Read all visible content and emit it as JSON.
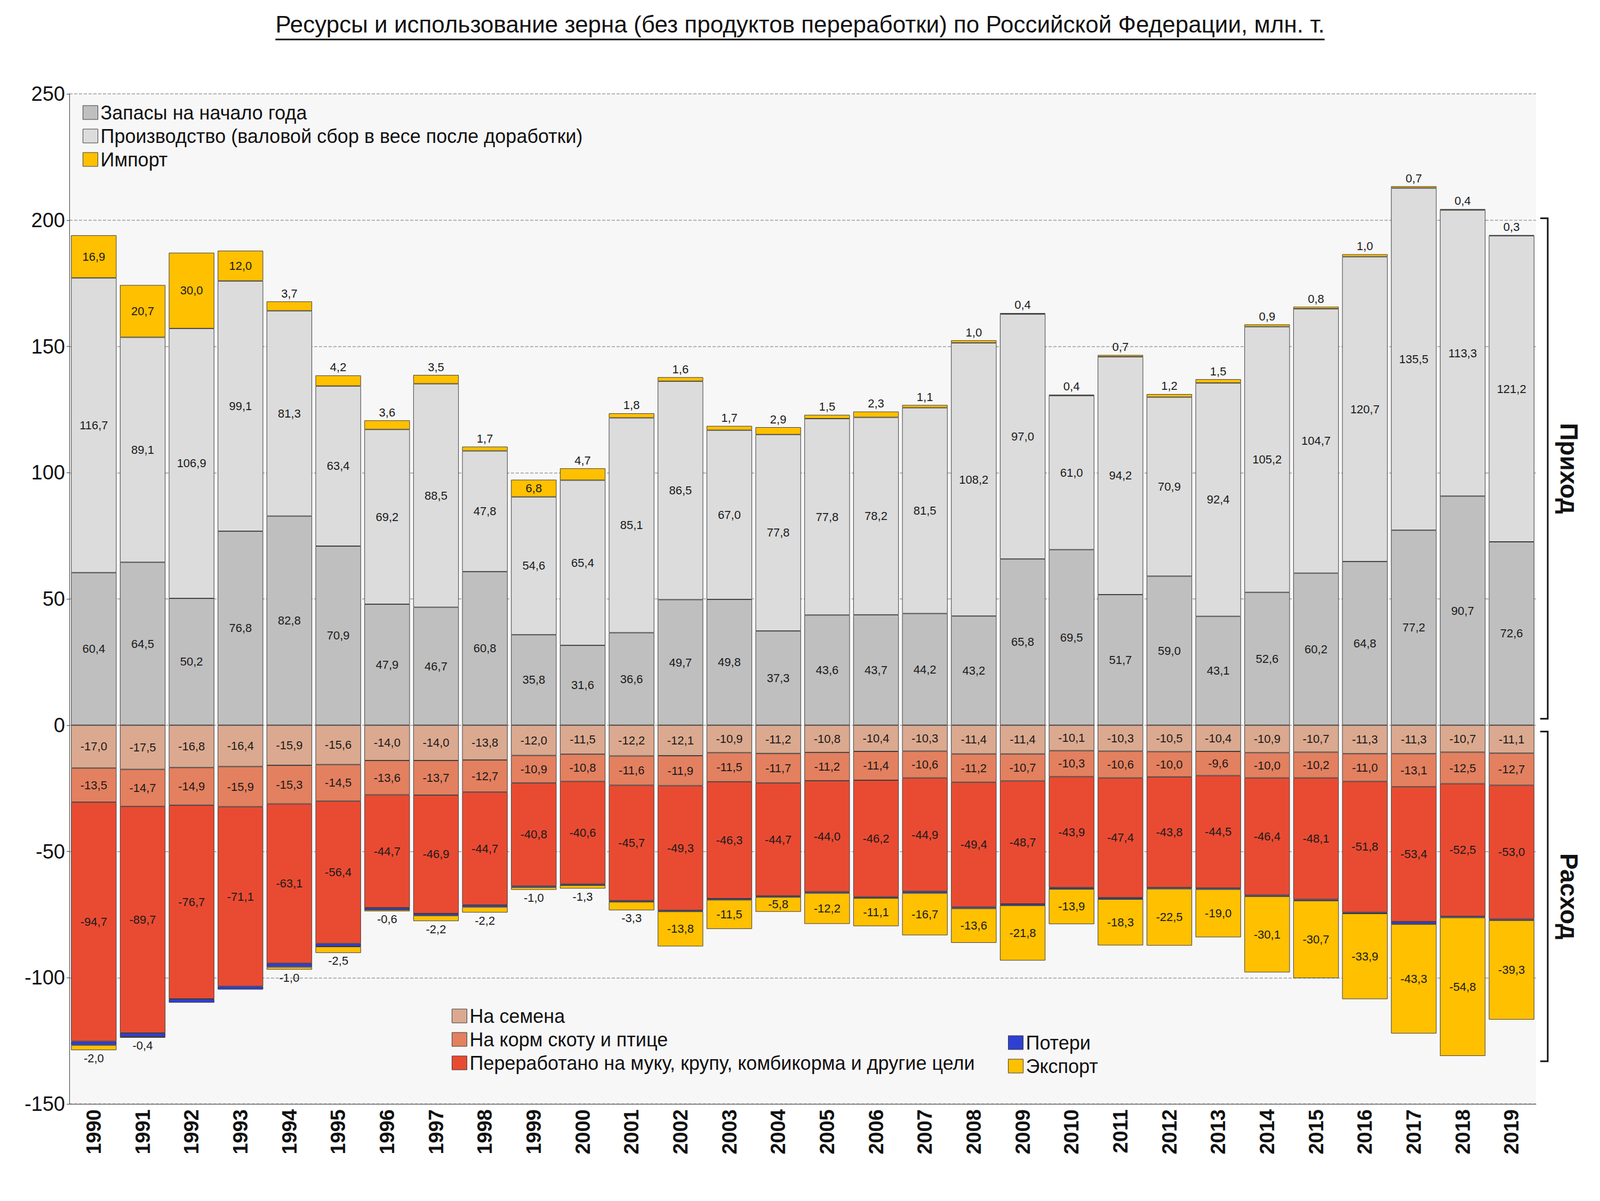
{
  "chart_data": {
    "type": "bar",
    "title": "Ресурсы и использование зерна (без продуктов переработки) по Российской Федерации, млн. т.",
    "categories": [
      "1990",
      "1991",
      "1992",
      "1993",
      "1994",
      "1995",
      "1996",
      "1997",
      "1998",
      "1999",
      "2000",
      "2001",
      "2002",
      "2003",
      "2004",
      "2005",
      "2006",
      "2007",
      "2008",
      "2009",
      "2010",
      "2011",
      "2012",
      "2013",
      "2014",
      "2015",
      "2016",
      "2017",
      "2018",
      "2019"
    ],
    "ylim": [
      -150,
      250
    ],
    "yticks": [
      -150,
      -100,
      -50,
      0,
      50,
      100,
      150,
      200,
      250
    ],
    "grid": true,
    "stacked": true,
    "data_labels": true,
    "legend": "upper left",
    "annotations": [
      "Приход",
      "Расход"
    ],
    "series": [
      {
        "name": "Запасы на начало года",
        "color": "#bfbfbf",
        "values": [
          60.4,
          64.5,
          50.2,
          76.8,
          82.8,
          70.9,
          47.9,
          46.7,
          60.8,
          35.8,
          31.6,
          36.6,
          49.7,
          49.8,
          37.3,
          43.6,
          43.7,
          44.2,
          43.2,
          65.8,
          69.5,
          51.7,
          59.0,
          43.1,
          52.6,
          60.2,
          64.8,
          77.2,
          90.7,
          72.6
        ],
        "value_labels": [
          "60,4",
          "64,5",
          "50,2",
          "76,8",
          "82,8",
          "70,9",
          "47,9",
          "46,7",
          "60,8",
          "35,8",
          "31,6",
          "36,6",
          "49,7",
          "49,8",
          "37,3",
          "43,6",
          "43,7",
          "44,2",
          "43,2",
          "65,8",
          "69,5",
          "51,7",
          "59,0",
          "43,1",
          "52,6",
          "60,2",
          "64,8",
          "77,2",
          "90,7",
          "72,6"
        ]
      },
      {
        "name": "Производство (валовой сбор в весе после доработки)",
        "color": "#dcdcdc",
        "values": [
          116.7,
          89.1,
          106.9,
          99.1,
          81.3,
          63.4,
          69.2,
          88.5,
          47.8,
          54.6,
          65.4,
          85.1,
          86.5,
          67.0,
          77.8,
          77.8,
          78.2,
          81.5,
          108.2,
          97.0,
          61.0,
          94.2,
          70.9,
          92.4,
          105.2,
          104.7,
          120.7,
          135.5,
          113.3,
          121.2
        ],
        "value_labels": [
          "116,7",
          "89,1",
          "106,9",
          "99,1",
          "81,3",
          "63,4",
          "69,2",
          "88,5",
          "47,8",
          "54,6",
          "65,4",
          "85,1",
          "86,5",
          "67,0",
          "77,8",
          "77,8",
          "78,2",
          "81,5",
          "108,2",
          "97,0",
          "61,0",
          "94,2",
          "70,9",
          "92,4",
          "105,2",
          "104,7",
          "120,7",
          "135,5",
          "113,3",
          "121,2"
        ]
      },
      {
        "name": "Импорт",
        "color": "#ffc000",
        "values": [
          16.9,
          20.7,
          30.0,
          12.0,
          3.7,
          4.2,
          3.6,
          3.5,
          1.7,
          6.8,
          4.7,
          1.8,
          1.6,
          1.7,
          2.9,
          1.5,
          2.3,
          1.1,
          1.0,
          0.4,
          0.4,
          0.7,
          1.2,
          1.5,
          0.9,
          0.8,
          1.0,
          0.7,
          0.4,
          0.3
        ],
        "value_labels": [
          "16,9",
          "20,7",
          "30,0",
          "12,0",
          "3,7",
          "4,2",
          "3,6",
          "3,5",
          "1,7",
          "6,8",
          "4,7",
          "1,8",
          "1,6",
          "1,7",
          "2,9",
          "1,5",
          "2,3",
          "1,1",
          "1,0",
          "0,4",
          "0,4",
          "0,7",
          "1,2",
          "1,5",
          "0,9",
          "0,8",
          "1,0",
          "0,7",
          "0,4",
          "0,3"
        ]
      },
      {
        "name": "На семена",
        "color": "#dba98f",
        "values": [
          -17.0,
          -17.5,
          -16.8,
          -16.4,
          -15.9,
          -15.6,
          -14.0,
          -14.0,
          -13.8,
          -12.0,
          -11.5,
          -12.2,
          -12.1,
          -10.9,
          -11.2,
          -10.8,
          -10.4,
          -10.3,
          -11.4,
          -11.4,
          -10.1,
          -10.3,
          -10.5,
          -10.4,
          -10.9,
          -10.7,
          -11.3,
          -11.3,
          -10.7,
          -11.1
        ],
        "value_labels": [
          "-17,0",
          "-17,5",
          "-16,8",
          "-16,4",
          "-15,9",
          "-15,6",
          "-14,0",
          "-14,0",
          "-13,8",
          "-12,0",
          "-11,5",
          "-12,2",
          "-12,1",
          "-10,9",
          "-11,2",
          "-10,8",
          "-10,4",
          "-10,3",
          "-11,4",
          "-11,4",
          "-10,1",
          "-10,3",
          "-10,5",
          "-10,4",
          "-10,9",
          "-10,7",
          "-11,3",
          "-11,3",
          "-10,7",
          "-11,1"
        ]
      },
      {
        "name": "На корм скоту и птице",
        "color": "#e3805f",
        "values": [
          -13.5,
          -14.7,
          -14.9,
          -15.9,
          -15.3,
          -14.5,
          -13.6,
          -13.7,
          -12.7,
          -10.9,
          -10.8,
          -11.6,
          -11.9,
          -11.5,
          -11.7,
          -11.2,
          -11.4,
          -10.6,
          -11.2,
          -10.7,
          -10.3,
          -10.6,
          -10.0,
          -9.6,
          -10.0,
          -10.2,
          -11.0,
          -13.1,
          -12.5,
          -12.7
        ],
        "value_labels": [
          "-13,5",
          "-14,7",
          "-14,9",
          "-15,9",
          "-15,3",
          "-14,5",
          "-13,6",
          "-13,7",
          "-12,7",
          "-10,9",
          "-10,8",
          "-11,6",
          "-11,9",
          "-11,5",
          "-11,7",
          "-11,2",
          "-11,4",
          "-10,6",
          "-11,2",
          "-10,7",
          "-10,3",
          "-10,6",
          "-10,0",
          "-9,6",
          "-10,0",
          "-10,2",
          "-11,0",
          "-13,1",
          "-12,5",
          "-12,7"
        ]
      },
      {
        "name": "Переработано на муку, крупу, комбикорма и другие цели",
        "color": "#e94b32",
        "values": [
          -94.7,
          -89.7,
          -76.7,
          -71.1,
          -63.1,
          -56.4,
          -44.7,
          -46.9,
          -44.7,
          -40.8,
          -40.6,
          -45.7,
          -49.3,
          -46.3,
          -44.7,
          -44.0,
          -46.2,
          -44.9,
          -49.4,
          -48.7,
          -43.9,
          -47.4,
          -43.8,
          -44.5,
          -46.4,
          -48.1,
          -51.8,
          -53.4,
          -52.5,
          -53.0
        ],
        "value_labels": [
          "-94,7",
          "-89,7",
          "-76,7",
          "-71,1",
          "-63,1",
          "-56,4",
          "-44,7",
          "-46,9",
          "-44,7",
          "-40,8",
          "-40,6",
          "-45,7",
          "-49,3",
          "-46,3",
          "-44,7",
          "-44,0",
          "-46,2",
          "-44,9",
          "-49,4",
          "-48,7",
          "-43,9",
          "-47,4",
          "-43,8",
          "-44,5",
          "-46,4",
          "-48,1",
          "-51,8",
          "-53,4",
          "-52,5",
          "-53,0"
        ]
      },
      {
        "name": "Потери",
        "color": "#2f3fd0",
        "data_labels": false,
        "values": [
          -1.5,
          -1.5,
          -1.5,
          -1.3,
          -1.5,
          -1.2,
          -0.8,
          -0.8,
          -0.8,
          -0.5,
          -0.5,
          -0.5,
          -0.5,
          -0.5,
          -0.5,
          -0.5,
          -0.5,
          -0.7,
          -0.6,
          -0.6,
          -0.6,
          -0.6,
          -0.5,
          -0.5,
          -0.5,
          -0.5,
          -0.5,
          -1.0,
          -0.5,
          -0.5
        ]
      },
      {
        "name": "Экспорт",
        "color": "#ffc000",
        "values": [
          -2.0,
          -0.4,
          null,
          null,
          -1.0,
          -2.5,
          -0.6,
          -2.2,
          -2.2,
          -1.0,
          -1.3,
          -3.3,
          -13.8,
          -11.5,
          -5.8,
          -12.2,
          -11.1,
          -16.7,
          -13.6,
          -21.8,
          -13.9,
          -18.3,
          -22.5,
          -19.0,
          -30.1,
          -30.7,
          -33.9,
          -43.3,
          -54.8,
          -39.3
        ],
        "value_labels": [
          "-2,0",
          "-0,4",
          null,
          null,
          "-1,0",
          "-2,5",
          "-0,6",
          "-2,2",
          "-2,2",
          "-1,0",
          "-1,3",
          "-3,3",
          "-13,8",
          "-11,5",
          "-5,8",
          "-12,2",
          "-11,1",
          "-16,7",
          "-13,6",
          "-21,8",
          "-13,9",
          "-18,3",
          "-22,5",
          "-19,0",
          "-30,1",
          "-30,7",
          "-33,9",
          "-43,3",
          "-54,8",
          "-39,3"
        ]
      }
    ]
  }
}
